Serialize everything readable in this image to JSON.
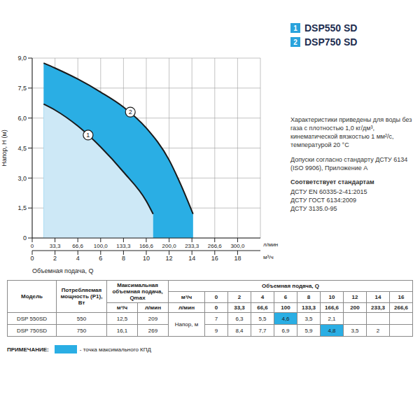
{
  "chart_data": {
    "type": "area",
    "x_label": "Объемная подача, Q",
    "x_unit": "м³/ч",
    "x2_unit": "л/мин",
    "y_label": "Напор, H (м)",
    "xlim": [
      0,
      20
    ],
    "xticks": [
      0,
      2,
      4,
      6,
      8,
      10,
      12,
      14,
      16,
      18
    ],
    "x2lim": [
      0,
      333.3
    ],
    "x2ticks": [
      0,
      {
        "value": 33.3,
        "label": "33,3"
      },
      {
        "value": 66.6,
        "label": "66,6"
      },
      {
        "value": 100,
        "label": "100,0"
      },
      {
        "value": 133.3,
        "label": "133,3"
      },
      {
        "value": 166.6,
        "label": "166,6"
      },
      {
        "value": 200,
        "label": "200,0"
      },
      {
        "value": 233.3,
        "label": "233,3"
      },
      {
        "value": 266.6,
        "label": "266,6"
      },
      {
        "value": 300,
        "label": "300,0"
      }
    ],
    "ylim": [
      0,
      9
    ],
    "yticks": [
      0,
      {
        "value": 1.5,
        "label": "1,5"
      },
      {
        "value": 3,
        "label": "3,0"
      },
      {
        "value": 4.5,
        "label": "4,5"
      },
      {
        "value": 6,
        "label": "6,0"
      },
      {
        "value": 7.5,
        "label": "7,5"
      },
      {
        "value": 9,
        "label": "9,0"
      }
    ],
    "grid": true,
    "legend": "top-right",
    "series": [
      {
        "name": "DSP550 SD",
        "color": "#cde8f6",
        "x": [
          1,
          2,
          4,
          6,
          8,
          10,
          10.6
        ],
        "values": [
          6.7,
          6.4,
          5.6,
          4.55,
          3.3,
          1.85,
          1.2
        ]
      },
      {
        "name": "DSP750 SD",
        "color": "#2aaee4",
        "x": [
          1,
          2,
          4,
          6,
          8,
          10,
          12,
          13,
          14.1
        ],
        "values": [
          8.75,
          8.5,
          7.95,
          7.3,
          6.55,
          5.5,
          3.9,
          2.7,
          1.2
        ]
      }
    ],
    "annotations": [
      {
        "text": "1",
        "x": 4.9,
        "y": 5.15
      },
      {
        "text": "2",
        "x": 8.6,
        "y": 6.3
      }
    ]
  },
  "side_text": {
    "conditions": "Характеристики приведены для воды без газа с плотностью 1,0 кг/дм³, кинематической вязкостью 1 мм²/с, температурой 20 °C",
    "tolerance": "Допуски согласно стандарту ДСТУ 6134 (ISO 9906), Приложение А",
    "standards_title": "Соответствует стандартам",
    "standards": [
      "ДСТУ EN 60335-2-41:2015",
      "ДСТУ ГОСТ 6134:2009",
      "ДСТУ 3135.0-95"
    ]
  },
  "table": {
    "header": {
      "model": "Модель",
      "power": "Потребляемая мощность (P1), Вт",
      "qmax": "Максимальная объемная подача, Qmax",
      "qmax_units": [
        "м³/ч",
        "л/мин"
      ],
      "flow": "Объемная подача, Q",
      "flow_units": [
        "м³/ч",
        "л/мин"
      ],
      "flow_m3h": [
        "0",
        "2",
        "4",
        "6",
        "8",
        "10",
        "12",
        "14",
        "16"
      ],
      "flow_lmin": [
        "0",
        "33,3",
        "66,6",
        "100",
        "133,3",
        "166,6",
        "200",
        "233,3",
        "266,6"
      ]
    },
    "head_label": "Напор, м",
    "rows": [
      {
        "model": "DSP 550SD",
        "power": "550",
        "qmax_m3h": "12,5",
        "qmax_lmin": "209",
        "head": [
          "7",
          "6,3",
          "5,5",
          "4,6",
          "3,5",
          "2,1",
          null,
          null,
          null
        ],
        "best_efficiency": 3
      },
      {
        "model": "DSP 750SD",
        "power": "750",
        "qmax_m3h": "16,1",
        "qmax_lmin": "269",
        "head": [
          "9",
          "8,4",
          "7,7",
          "6,9",
          "5,9",
          "4,8",
          "3,5",
          "2",
          null
        ],
        "best_efficiency": 5
      }
    ]
  },
  "note": {
    "label": "ПРИМЕЧАНИЕ:",
    "text": "- точка максимального КПД",
    "color": "#2aaee4"
  }
}
